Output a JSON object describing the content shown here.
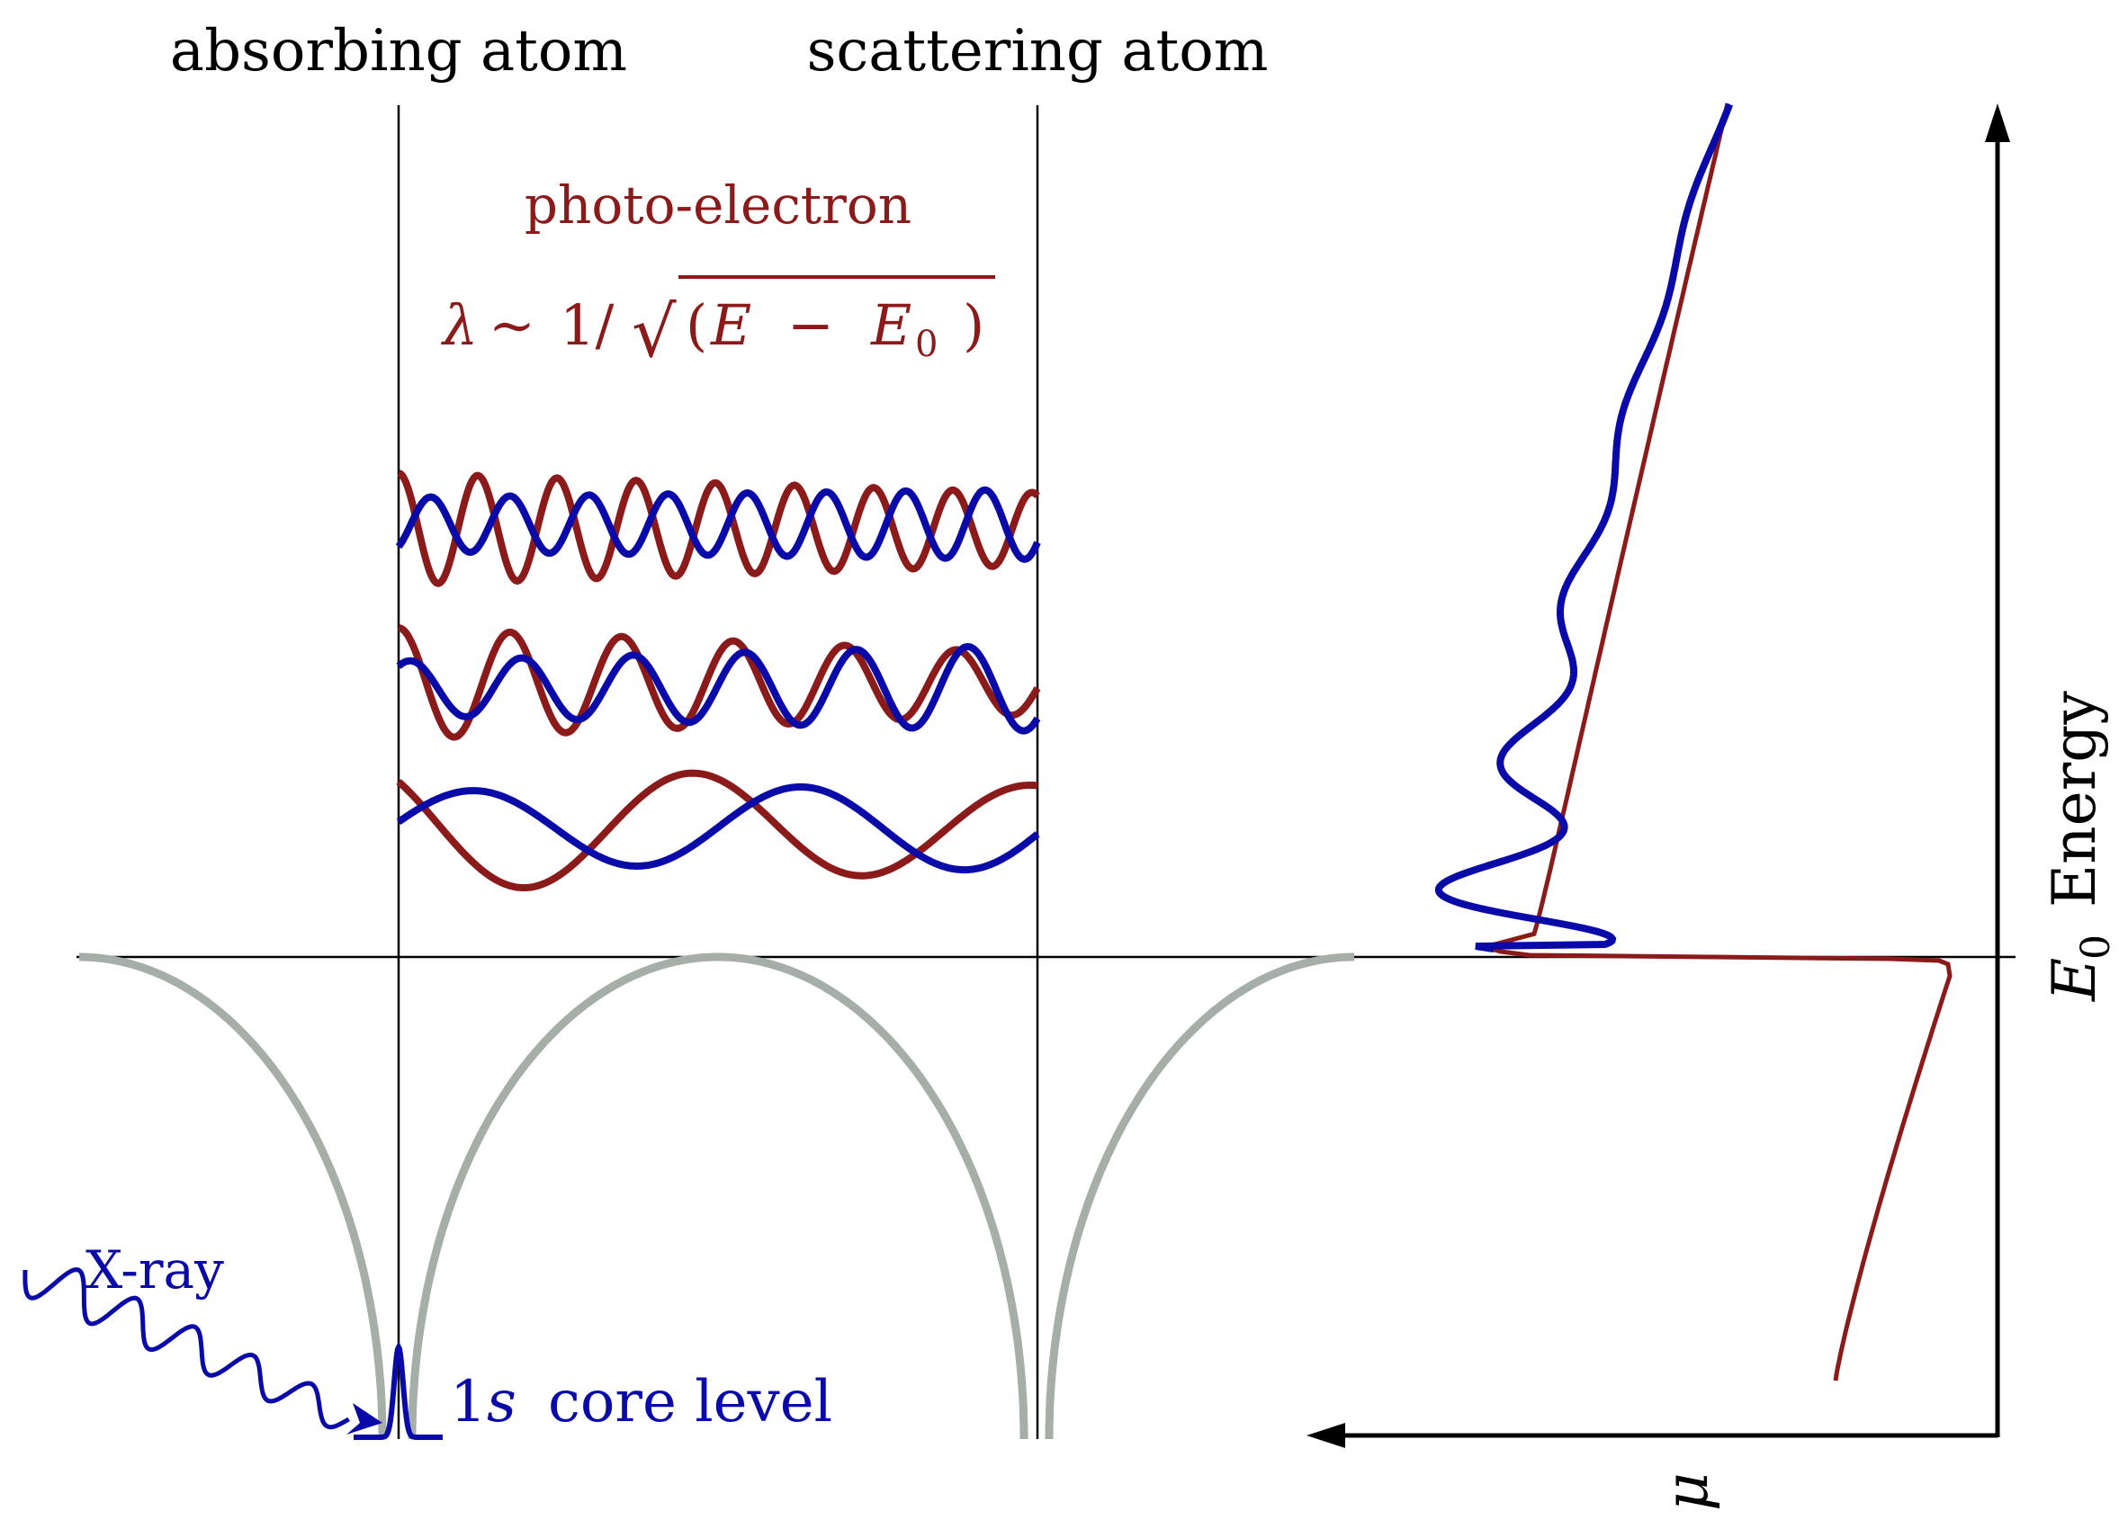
{
  "labels": {
    "absorbing_atom": "absorbing atom",
    "scattering_atom": "scattering atom",
    "photo_electron": "photo-electron",
    "lambda_sym": "λ",
    "sim": "∼",
    "one_over": "1/",
    "sqrt_sign": "√",
    "paren_open": "(",
    "E": "E",
    "minus": "−",
    "E0_E": "E",
    "E0_sub": "0",
    "paren_close": ")",
    "xray": "X-ray",
    "core_num": "1",
    "core_s": "s",
    "core_rest": "core level",
    "energy_word": "Energy",
    "energy_E": "E",
    "energy_sub": "0",
    "mu": "μ"
  },
  "colors": {
    "photo_electron": "#8b1a1a",
    "blue_wave": "#0a0aa8",
    "potential": "#a5aea7",
    "axis": "#000000"
  }
}
